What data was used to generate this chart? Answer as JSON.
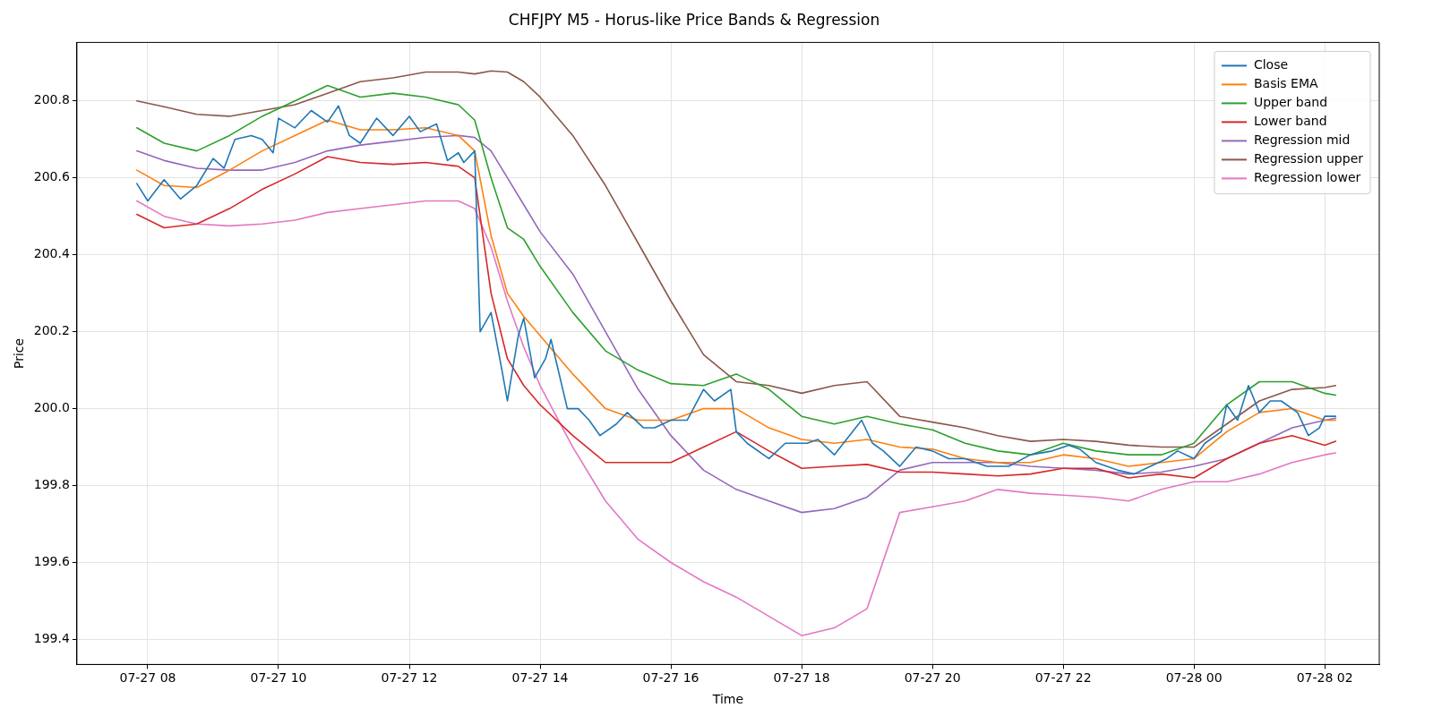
{
  "chart_data": {
    "type": "line",
    "title": "CHFJPY M5 - Horus-like Price Bands & Regression",
    "xlabel": "Time",
    "ylabel": "Price",
    "x": [
      "--07-27T07:50",
      "--07-27T08:15",
      "--07-27T08:45",
      "--07-27T09:15",
      "--07-27T09:45",
      "--07-27T10:15",
      "--07-27T10:45",
      "--07-27T11:15",
      "--07-27T11:45",
      "--07-27T12:15",
      "--07-27T12:45",
      "--07-27T13:00",
      "--07-27T13:15",
      "--07-27T13:30",
      "--07-27T13:45",
      "--07-27T14:00",
      "--07-27T14:30",
      "--07-27T15:00",
      "--07-27T15:30",
      "--07-27T16:00",
      "--07-27T16:30",
      "--07-27T17:00",
      "--07-27T17:30",
      "--07-27T18:00",
      "--07-27T18:30",
      "--07-27T19:00",
      "--07-27T19:30",
      "--07-27T20:00",
      "--07-27T20:30",
      "--07-27T21:00",
      "--07-27T21:30",
      "--07-27T22:00",
      "--07-27T22:30",
      "--07-27T23:00",
      "--07-27T23:30",
      "--07-28T00:00",
      "--07-28T00:30",
      "--07-28T01:00",
      "--07-28T01:30",
      "--07-28T02:00",
      "--07-28T02:10"
    ],
    "series": [
      {
        "name": "Close",
        "color": "#1f77b4",
        "x": [
          "--07-27T07:50",
          "--07-27T08:00",
          "--07-27T08:15",
          "--07-27T08:30",
          "--07-27T08:45",
          "--07-27T09:00",
          "--07-27T09:10",
          "--07-27T09:20",
          "--07-27T09:35",
          "--07-27T09:45",
          "--07-27T09:55",
          "--07-27T10:00",
          "--07-27T10:15",
          "--07-27T10:30",
          "--07-27T10:45",
          "--07-27T10:55",
          "--07-27T11:05",
          "--07-27T11:15",
          "--07-27T11:30",
          "--07-27T11:45",
          "--07-27T12:00",
          "--07-27T12:10",
          "--07-27T12:25",
          "--07-27T12:35",
          "--07-27T12:45",
          "--07-27T12:50",
          "--07-27T13:00",
          "--07-27T13:05",
          "--07-27T13:15",
          "--07-27T13:25",
          "--07-27T13:30",
          "--07-27T13:40",
          "--07-27T13:45",
          "--07-27T13:55",
          "--07-27T14:05",
          "--07-27T14:10",
          "--07-27T14:25",
          "--07-27T14:35",
          "--07-27T14:45",
          "--07-27T14:55",
          "--07-27T15:10",
          "--07-27T15:20",
          "--07-27T15:35",
          "--07-27T15:45",
          "--07-27T16:00",
          "--07-27T16:15",
          "--07-27T16:30",
          "--07-27T16:40",
          "--07-27T16:55",
          "--07-27T17:00",
          "--07-27T17:10",
          "--07-27T17:30",
          "--07-27T17:45",
          "--07-27T18:05",
          "--07-27T18:15",
          "--07-27T18:30",
          "--07-27T18:55",
          "--07-27T19:05",
          "--07-27T19:15",
          "--07-27T19:30",
          "--07-27T19:45",
          "--07-27T20:00",
          "--07-27T20:15",
          "--07-27T20:30",
          "--07-27T20:50",
          "--07-27T21:10",
          "--07-27T21:30",
          "--07-27T21:50",
          "--07-27T22:05",
          "--07-27T22:15",
          "--07-27T22:30",
          "--07-27T22:50",
          "--07-27T23:05",
          "--07-27T23:20",
          "--07-27T23:35",
          "--07-27T23:45",
          "--07-28T00:00",
          "--07-28T00:10",
          "--07-28T00:25",
          "--07-28T00:30",
          "--07-28T00:40",
          "--07-28T00:50",
          "--07-28T01:00",
          "--07-28T01:10",
          "--07-28T01:20",
          "--07-28T01:35",
          "--07-28T01:45",
          "--07-28T01:55",
          "--07-28T02:00",
          "--07-28T02:10"
        ],
        "values": [
          200.585,
          200.54,
          200.595,
          200.545,
          200.58,
          200.65,
          200.625,
          200.7,
          200.71,
          200.7,
          200.665,
          200.755,
          200.73,
          200.775,
          200.745,
          200.787,
          200.71,
          200.69,
          200.755,
          200.71,
          200.76,
          200.72,
          200.74,
          200.645,
          200.665,
          200.64,
          200.67,
          200.2,
          200.25,
          200.1,
          200.02,
          200.19,
          200.235,
          200.08,
          200.13,
          200.18,
          200.0,
          200.0,
          199.97,
          199.93,
          199.96,
          199.99,
          199.95,
          199.95,
          199.97,
          199.97,
          200.05,
          200.02,
          200.05,
          199.94,
          199.91,
          199.87,
          199.91,
          199.91,
          199.92,
          199.88,
          199.97,
          199.91,
          199.89,
          199.85,
          199.9,
          199.89,
          199.87,
          199.87,
          199.85,
          199.85,
          199.88,
          199.89,
          199.905,
          199.895,
          199.86,
          199.84,
          199.83,
          199.85,
          199.87,
          199.89,
          199.87,
          199.91,
          199.94,
          200.01,
          199.97,
          200.06,
          199.99,
          200.02,
          200.02,
          199.99,
          199.93,
          199.95,
          199.98,
          199.98
        ]
      },
      {
        "name": "Basis EMA",
        "color": "#ff7f0e",
        "values": [
          200.62,
          200.58,
          200.575,
          200.62,
          200.67,
          200.71,
          200.75,
          200.725,
          200.725,
          200.73,
          200.71,
          200.67,
          200.45,
          200.3,
          200.24,
          200.19,
          200.09,
          200.0,
          199.97,
          199.97,
          200.0,
          200.0,
          199.95,
          199.92,
          199.91,
          199.92,
          199.9,
          199.895,
          199.87,
          199.86,
          199.86,
          199.88,
          199.87,
          199.85,
          199.86,
          199.87,
          199.94,
          199.99,
          200.0,
          199.97,
          199.97
        ]
      },
      {
        "name": "Upper band",
        "color": "#2ca02c",
        "values": [
          200.73,
          200.69,
          200.67,
          200.71,
          200.76,
          200.8,
          200.84,
          200.81,
          200.82,
          200.81,
          200.79,
          200.75,
          200.6,
          200.47,
          200.44,
          200.37,
          200.25,
          200.15,
          200.1,
          200.065,
          200.06,
          200.09,
          200.05,
          199.98,
          199.96,
          199.98,
          199.96,
          199.945,
          199.91,
          199.89,
          199.88,
          199.91,
          199.89,
          199.88,
          199.88,
          199.91,
          200.01,
          200.07,
          200.07,
          200.04,
          200.035
        ]
      },
      {
        "name": "Lower band",
        "color": "#d62728",
        "values": [
          200.505,
          200.47,
          200.48,
          200.52,
          200.57,
          200.61,
          200.655,
          200.64,
          200.635,
          200.64,
          200.63,
          200.6,
          200.3,
          200.13,
          200.06,
          200.01,
          199.93,
          199.86,
          199.86,
          199.86,
          199.9,
          199.94,
          199.89,
          199.845,
          199.85,
          199.855,
          199.835,
          199.835,
          199.83,
          199.825,
          199.83,
          199.845,
          199.845,
          199.82,
          199.83,
          199.82,
          199.87,
          199.91,
          199.93,
          199.905,
          199.915
        ]
      },
      {
        "name": "Regression mid",
        "color": "#9467bd",
        "values": [
          200.67,
          200.645,
          200.625,
          200.62,
          200.62,
          200.64,
          200.67,
          200.685,
          200.695,
          200.705,
          200.71,
          200.705,
          200.67,
          200.6,
          200.53,
          200.46,
          200.35,
          200.2,
          200.05,
          199.93,
          199.84,
          199.79,
          199.76,
          199.73,
          199.74,
          199.77,
          199.84,
          199.86,
          199.86,
          199.86,
          199.85,
          199.845,
          199.84,
          199.83,
          199.835,
          199.85,
          199.87,
          199.91,
          199.95,
          199.97,
          199.975
        ]
      },
      {
        "name": "Regression upper",
        "color": "#8c564b",
        "values": [
          200.8,
          200.785,
          200.765,
          200.76,
          200.775,
          200.79,
          200.82,
          200.85,
          200.86,
          200.875,
          200.875,
          200.87,
          200.878,
          200.875,
          200.85,
          200.81,
          200.71,
          200.58,
          200.43,
          200.28,
          200.14,
          200.07,
          200.06,
          200.04,
          200.06,
          200.07,
          199.98,
          199.965,
          199.95,
          199.93,
          199.915,
          199.92,
          199.915,
          199.905,
          199.9,
          199.9,
          199.96,
          200.02,
          200.05,
          200.055,
          200.06
        ]
      },
      {
        "name": "Regression lower",
        "color": "#e377c2",
        "values": [
          200.54,
          200.5,
          200.48,
          200.475,
          200.48,
          200.49,
          200.51,
          200.52,
          200.53,
          200.54,
          200.54,
          200.52,
          200.42,
          200.28,
          200.16,
          200.06,
          199.9,
          199.76,
          199.66,
          199.6,
          199.55,
          199.51,
          199.46,
          199.41,
          199.43,
          199.48,
          199.73,
          199.745,
          199.76,
          199.79,
          199.78,
          199.775,
          199.77,
          199.76,
          199.79,
          199.81,
          199.81,
          199.83,
          199.86,
          199.88,
          199.885
        ]
      }
    ],
    "xlim": [
      "--07-27T06:55",
      "--07-28T02:50"
    ],
    "ylim": [
      199.335,
      200.952
    ],
    "xticks": [
      {
        "value": "--07-27T08:00",
        "label": "07-27 08"
      },
      {
        "value": "--07-27T10:00",
        "label": "07-27 10"
      },
      {
        "value": "--07-27T12:00",
        "label": "07-27 12"
      },
      {
        "value": "--07-27T14:00",
        "label": "07-27 14"
      },
      {
        "value": "--07-27T16:00",
        "label": "07-27 16"
      },
      {
        "value": "--07-27T18:00",
        "label": "07-27 18"
      },
      {
        "value": "--07-27T20:00",
        "label": "07-27 20"
      },
      {
        "value": "--07-27T22:00",
        "label": "07-27 22"
      },
      {
        "value": "--07-28T00:00",
        "label": "07-28 00"
      },
      {
        "value": "--07-28T02:00",
        "label": "07-28 02"
      }
    ],
    "yticks": [
      199.4,
      199.6,
      199.8,
      {
        "value": 200,
        "label": "200.0"
      },
      200.2,
      200.4,
      200.6,
      200.8
    ],
    "grid": true,
    "legend": "top right",
    "marker": "none",
    "line_style": "solid"
  }
}
